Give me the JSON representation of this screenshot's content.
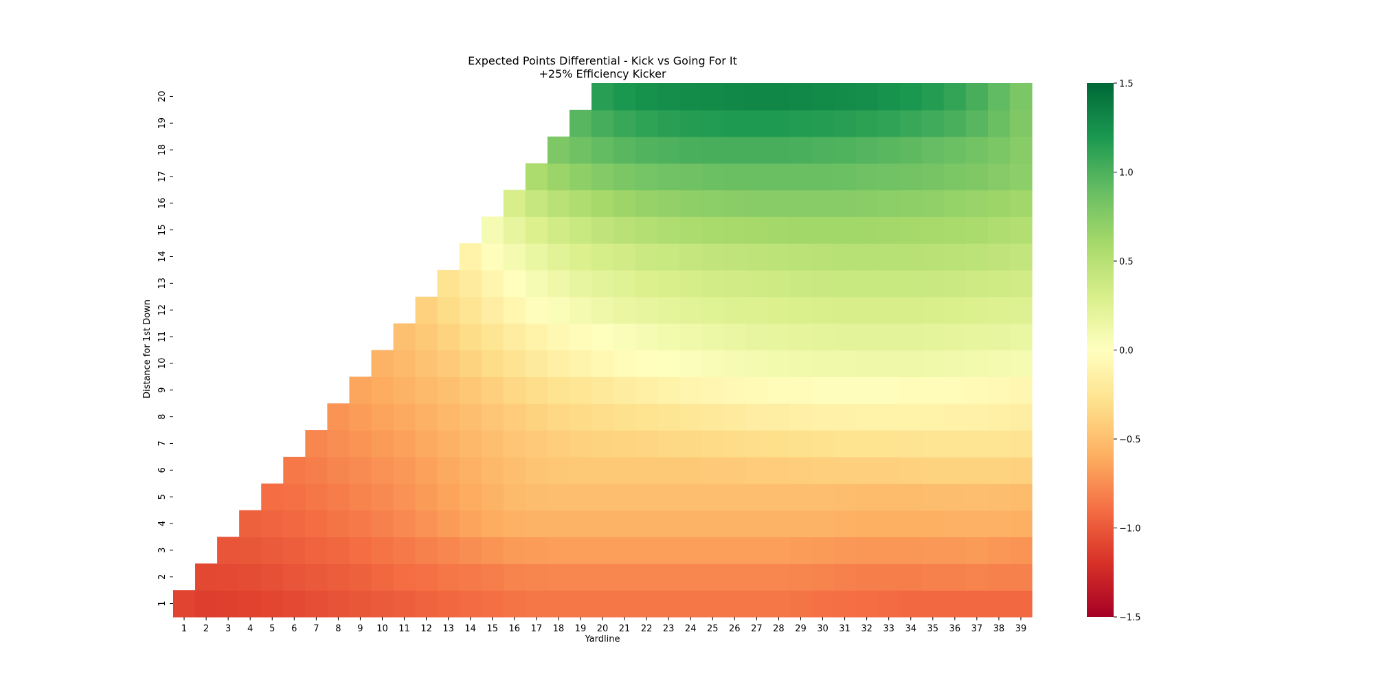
{
  "chart_data": {
    "type": "heatmap",
    "title": "Expected Points Differential - Kick vs Going For It",
    "subtitle": "+25% Efficiency Kicker",
    "xlabel": "Yardline",
    "ylabel": "Distance for 1st Down",
    "x_categories": [
      1,
      2,
      3,
      4,
      5,
      6,
      7,
      8,
      9,
      10,
      11,
      12,
      13,
      14,
      15,
      16,
      17,
      18,
      19,
      20,
      21,
      22,
      23,
      24,
      25,
      26,
      27,
      28,
      29,
      30,
      31,
      32,
      33,
      34,
      35,
      36,
      37,
      38,
      39
    ],
    "y_categories": [
      1,
      2,
      3,
      4,
      5,
      6,
      7,
      8,
      9,
      10,
      11,
      12,
      13,
      14,
      15,
      16,
      17,
      18,
      19,
      20
    ],
    "mask_rule": "cells with distance greater than yardline are empty",
    "colormap": "RdYlGn",
    "colorbar": {
      "range": [
        -1.5,
        1.5
      ],
      "ticks": [
        -1.5,
        -1.0,
        -0.5,
        0.0,
        0.5,
        1.0,
        1.5
      ],
      "tick_labels": [
        "−1.5",
        "−1.0",
        "−0.5",
        "0.0",
        "0.5",
        "1.0",
        "1.5"
      ]
    },
    "colormap_stops": [
      "#a50026",
      "#d73027",
      "#f46d43",
      "#fdae61",
      "#fee08b",
      "#ffffbf",
      "#d9ef8b",
      "#a6d96a",
      "#66bd63",
      "#1a9850",
      "#006837"
    ],
    "values": [
      [
        -1.1,
        -1.13,
        -1.12,
        -1.11,
        -1.09,
        -1.07,
        -1.05,
        -1.03,
        -1.01,
        -0.99,
        -0.97,
        -0.95,
        -0.93,
        -0.91,
        -0.89,
        -0.87,
        -0.86,
        -0.86,
        -0.86,
        -0.86,
        -0.86,
        -0.86,
        -0.86,
        -0.86,
        -0.86,
        -0.86,
        -0.86,
        -0.86,
        -0.87,
        -0.88,
        -0.89,
        -0.9,
        -0.91,
        -0.92,
        -0.92,
        -0.92,
        -0.92,
        -0.92,
        -0.92
      ],
      [
        null,
        -1.08,
        -1.07,
        -1.06,
        -1.04,
        -1.02,
        -1.0,
        -0.98,
        -0.96,
        -0.93,
        -0.9,
        -0.88,
        -0.86,
        -0.84,
        -0.82,
        -0.8,
        -0.79,
        -0.78,
        -0.78,
        -0.78,
        -0.78,
        -0.78,
        -0.78,
        -0.78,
        -0.78,
        -0.78,
        -0.78,
        -0.78,
        -0.79,
        -0.8,
        -0.81,
        -0.82,
        -0.82,
        -0.82,
        -0.81,
        -0.81,
        -0.8,
        -0.81,
        -0.81
      ],
      [
        null,
        null,
        -1.02,
        -1.01,
        -0.99,
        -0.97,
        -0.95,
        -0.93,
        -0.9,
        -0.87,
        -0.84,
        -0.81,
        -0.78,
        -0.75,
        -0.72,
        -0.69,
        -0.68,
        -0.67,
        -0.67,
        -0.67,
        -0.67,
        -0.67,
        -0.67,
        -0.67,
        -0.67,
        -0.67,
        -0.67,
        -0.67,
        -0.68,
        -0.69,
        -0.7,
        -0.71,
        -0.71,
        -0.71,
        -0.7,
        -0.7,
        -0.69,
        -0.71,
        -0.72
      ],
      [
        null,
        null,
        null,
        -0.96,
        -0.94,
        -0.92,
        -0.9,
        -0.87,
        -0.84,
        -0.81,
        -0.77,
        -0.73,
        -0.69,
        -0.65,
        -0.61,
        -0.58,
        -0.57,
        -0.57,
        -0.57,
        -0.57,
        -0.57,
        -0.57,
        -0.57,
        -0.57,
        -0.57,
        -0.57,
        -0.57,
        -0.57,
        -0.57,
        -0.57,
        -0.58,
        -0.59,
        -0.59,
        -0.59,
        -0.59,
        -0.58,
        -0.58,
        -0.58,
        -0.59
      ],
      [
        null,
        null,
        null,
        null,
        -0.9,
        -0.88,
        -0.86,
        -0.83,
        -0.8,
        -0.77,
        -0.73,
        -0.69,
        -0.65,
        -0.61,
        -0.57,
        -0.53,
        -0.51,
        -0.5,
        -0.5,
        -0.5,
        -0.5,
        -0.5,
        -0.5,
        -0.5,
        -0.5,
        -0.5,
        -0.5,
        -0.5,
        -0.5,
        -0.5,
        -0.51,
        -0.52,
        -0.52,
        -0.52,
        -0.51,
        -0.51,
        -0.5,
        -0.51,
        -0.52
      ],
      [
        null,
        null,
        null,
        null,
        null,
        -0.85,
        -0.82,
        -0.79,
        -0.76,
        -0.73,
        -0.7,
        -0.66,
        -0.62,
        -0.58,
        -0.54,
        -0.5,
        -0.47,
        -0.45,
        -0.44,
        -0.44,
        -0.44,
        -0.44,
        -0.44,
        -0.44,
        -0.43,
        -0.43,
        -0.42,
        -0.42,
        -0.41,
        -0.4,
        -0.4,
        -0.4,
        -0.4,
        -0.39,
        -0.38,
        -0.38,
        -0.38,
        -0.38,
        -0.39
      ],
      [
        null,
        null,
        null,
        null,
        null,
        null,
        -0.78,
        -0.75,
        -0.72,
        -0.69,
        -0.66,
        -0.62,
        -0.58,
        -0.54,
        -0.5,
        -0.46,
        -0.43,
        -0.41,
        -0.39,
        -0.38,
        -0.37,
        -0.36,
        -0.35,
        -0.34,
        -0.33,
        -0.32,
        -0.31,
        -0.3,
        -0.29,
        -0.28,
        -0.27,
        -0.27,
        -0.27,
        -0.26,
        -0.25,
        -0.25,
        -0.25,
        -0.25,
        -0.26
      ],
      [
        null,
        null,
        null,
        null,
        null,
        null,
        null,
        -0.72,
        -0.68,
        -0.65,
        -0.62,
        -0.58,
        -0.54,
        -0.5,
        -0.46,
        -0.42,
        -0.38,
        -0.35,
        -0.33,
        -0.31,
        -0.29,
        -0.27,
        -0.25,
        -0.23,
        -0.21,
        -0.19,
        -0.17,
        -0.16,
        -0.15,
        -0.14,
        -0.13,
        -0.12,
        -0.12,
        -0.12,
        -0.12,
        -0.13,
        -0.14,
        -0.15,
        -0.16
      ],
      [
        null,
        null,
        null,
        null,
        null,
        null,
        null,
        null,
        -0.64,
        -0.61,
        -0.57,
        -0.53,
        -0.49,
        -0.45,
        -0.4,
        -0.35,
        -0.31,
        -0.27,
        -0.24,
        -0.21,
        -0.18,
        -0.15,
        -0.12,
        -0.1,
        -0.08,
        -0.06,
        -0.05,
        -0.04,
        -0.03,
        -0.02,
        -0.02,
        -0.02,
        -0.02,
        -0.03,
        -0.03,
        -0.04,
        -0.05,
        -0.06,
        -0.08
      ],
      [
        null,
        null,
        null,
        null,
        null,
        null,
        null,
        null,
        null,
        -0.57,
        -0.53,
        -0.48,
        -0.43,
        -0.38,
        -0.32,
        -0.26,
        -0.2,
        -0.15,
        -0.11,
        -0.07,
        -0.04,
        -0.01,
        0.01,
        0.03,
        0.05,
        0.07,
        0.09,
        0.1,
        0.11,
        0.12,
        0.12,
        0.13,
        0.13,
        0.13,
        0.12,
        0.11,
        0.1,
        0.09,
        0.08
      ],
      [
        null,
        null,
        null,
        null,
        null,
        null,
        null,
        null,
        null,
        null,
        -0.49,
        -0.44,
        -0.38,
        -0.32,
        -0.25,
        -0.18,
        -0.12,
        -0.07,
        -0.03,
        0.01,
        0.04,
        0.07,
        0.1,
        0.12,
        0.14,
        0.16,
        0.18,
        0.19,
        0.2,
        0.21,
        0.22,
        0.22,
        0.22,
        0.22,
        0.21,
        0.2,
        0.19,
        0.18,
        0.17
      ],
      [
        null,
        null,
        null,
        null,
        null,
        null,
        null,
        null,
        null,
        null,
        null,
        -0.39,
        -0.32,
        -0.25,
        -0.17,
        -0.09,
        -0.02,
        0.04,
        0.09,
        0.13,
        0.16,
        0.19,
        0.21,
        0.23,
        0.25,
        0.26,
        0.27,
        0.28,
        0.29,
        0.3,
        0.31,
        0.31,
        0.31,
        0.31,
        0.3,
        0.29,
        0.28,
        0.27,
        0.26
      ],
      [
        null,
        null,
        null,
        null,
        null,
        null,
        null,
        null,
        null,
        null,
        null,
        null,
        -0.27,
        -0.19,
        -0.1,
        -0.01,
        0.07,
        0.13,
        0.18,
        0.22,
        0.25,
        0.28,
        0.3,
        0.32,
        0.34,
        0.35,
        0.36,
        0.37,
        0.38,
        0.39,
        0.4,
        0.4,
        0.4,
        0.4,
        0.39,
        0.38,
        0.37,
        0.36,
        0.35
      ],
      [
        null,
        null,
        null,
        null,
        null,
        null,
        null,
        null,
        null,
        null,
        null,
        null,
        null,
        -0.12,
        -0.02,
        0.09,
        0.17,
        0.23,
        0.28,
        0.32,
        0.35,
        0.38,
        0.4,
        0.42,
        0.44,
        0.45,
        0.46,
        0.47,
        0.48,
        0.49,
        0.5,
        0.5,
        0.5,
        0.5,
        0.49,
        0.48,
        0.47,
        0.45,
        0.43
      ],
      [
        null,
        null,
        null,
        null,
        null,
        null,
        null,
        null,
        null,
        null,
        null,
        null,
        null,
        null,
        0.07,
        0.19,
        0.28,
        0.35,
        0.4,
        0.45,
        0.49,
        0.52,
        0.54,
        0.56,
        0.58,
        0.59,
        0.6,
        0.61,
        0.62,
        0.62,
        0.62,
        0.62,
        0.61,
        0.6,
        0.59,
        0.58,
        0.57,
        0.55,
        0.53
      ],
      [
        null,
        null,
        null,
        null,
        null,
        null,
        null,
        null,
        null,
        null,
        null,
        null,
        null,
        null,
        null,
        0.31,
        0.41,
        0.49,
        0.55,
        0.6,
        0.64,
        0.67,
        0.69,
        0.71,
        0.72,
        0.73,
        0.74,
        0.74,
        0.74,
        0.74,
        0.74,
        0.73,
        0.72,
        0.71,
        0.7,
        0.68,
        0.66,
        0.64,
        0.62
      ],
      [
        null,
        null,
        null,
        null,
        null,
        null,
        null,
        null,
        null,
        null,
        null,
        null,
        null,
        null,
        null,
        null,
        0.56,
        0.65,
        0.71,
        0.76,
        0.8,
        0.83,
        0.85,
        0.86,
        0.87,
        0.88,
        0.88,
        0.88,
        0.88,
        0.88,
        0.87,
        0.86,
        0.85,
        0.84,
        0.82,
        0.8,
        0.78,
        0.75,
        0.72
      ],
      [
        null,
        null,
        null,
        null,
        null,
        null,
        null,
        null,
        null,
        null,
        null,
        null,
        null,
        null,
        null,
        null,
        null,
        0.79,
        0.86,
        0.91,
        0.95,
        0.98,
        1.0,
        1.01,
        1.02,
        1.02,
        1.02,
        1.02,
        1.01,
        1.0,
        0.99,
        0.97,
        0.95,
        0.93,
        0.9,
        0.87,
        0.84,
        0.8,
        0.74
      ],
      [
        null,
        null,
        null,
        null,
        null,
        null,
        null,
        null,
        null,
        null,
        null,
        null,
        null,
        null,
        null,
        null,
        null,
        null,
        0.96,
        1.03,
        1.08,
        1.12,
        1.14,
        1.16,
        1.17,
        1.18,
        1.18,
        1.18,
        1.17,
        1.16,
        1.15,
        1.13,
        1.11,
        1.08,
        1.05,
        1.01,
        0.96,
        0.88,
        0.78
      ],
      [
        null,
        null,
        null,
        null,
        null,
        null,
        null,
        null,
        null,
        null,
        null,
        null,
        null,
        null,
        null,
        null,
        null,
        null,
        null,
        1.15,
        1.2,
        1.24,
        1.26,
        1.28,
        1.29,
        1.3,
        1.31,
        1.31,
        1.3,
        1.29,
        1.28,
        1.26,
        1.23,
        1.2,
        1.16,
        1.1,
        1.02,
        0.92,
        0.8
      ]
    ]
  }
}
